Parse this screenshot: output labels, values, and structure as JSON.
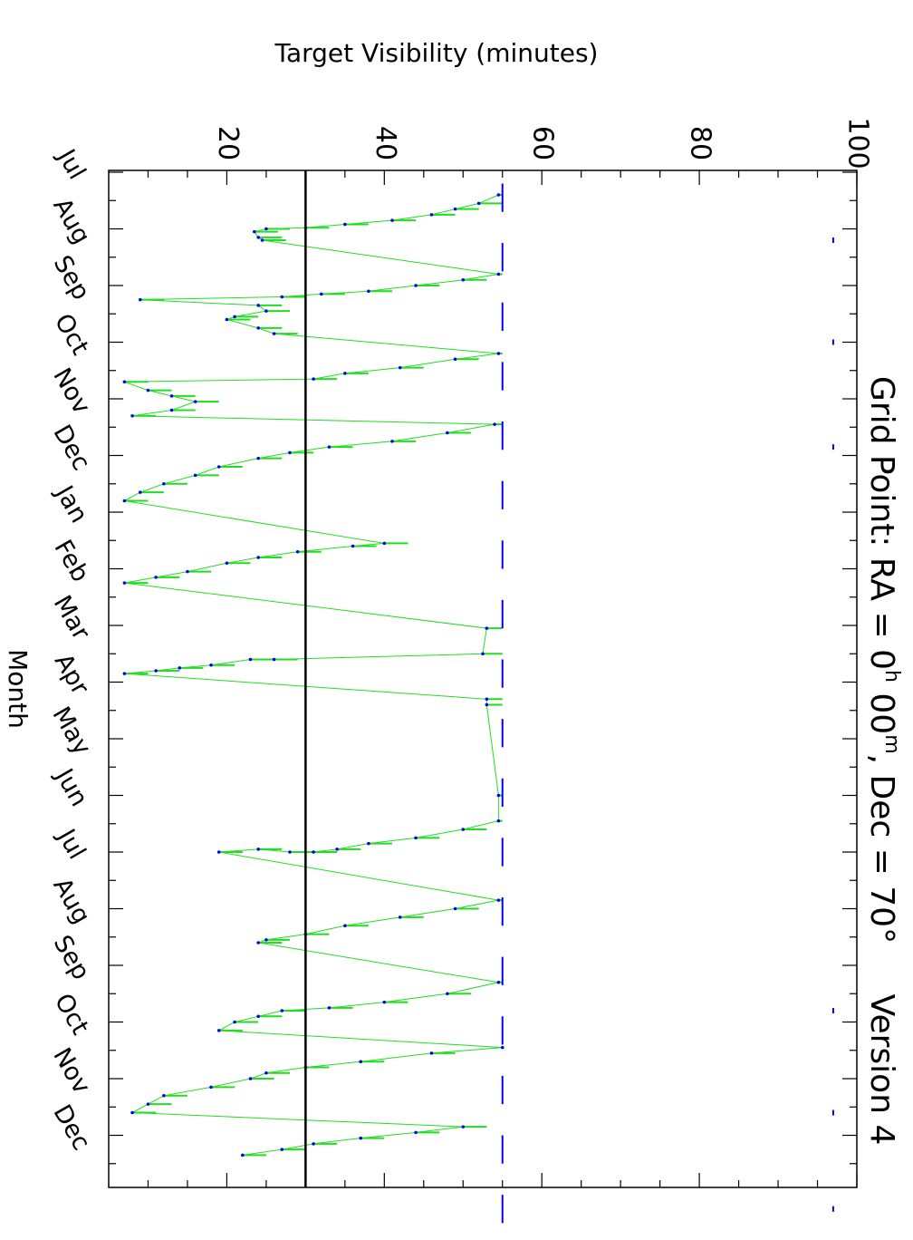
{
  "chart_data": {
    "type": "line",
    "title": "Grid Point: RA = 0h 00m, Dec = 70°",
    "title_parts": {
      "prefix": "Grid Point: RA = 0",
      "h_sup": "h",
      "mid": " 00",
      "m_sup": "m",
      "suffix": ", Dec = 70°"
    },
    "version_label": "Version 4",
    "xlabel": "Month",
    "ylabel": "Target Visibility (minutes)",
    "ylim": [
      5,
      100
    ],
    "y_ticks": [
      20,
      40,
      60,
      80,
      100
    ],
    "x_ticks": [
      "Jul",
      "Aug",
      "Sep",
      "Oct",
      "Nov",
      "Dec",
      "Jan",
      "Feb",
      "Mar",
      "Apr",
      "May",
      "Jun",
      "Jul",
      "Aug",
      "Sep",
      "Oct",
      "Nov",
      "Dec"
    ],
    "xlim_months": [
      0,
      18.5
    ],
    "threshold_line": 30,
    "colors": {
      "range_fill": "#22dd22",
      "points": "#0000ee",
      "threshold": "#000000"
    },
    "series": [
      {
        "name": "",
        "points": [
          [
            0.4,
            54.5
          ],
          [
            0.55,
            52
          ],
          [
            0.65,
            49
          ],
          [
            0.75,
            46
          ],
          [
            0.85,
            41
          ],
          [
            0.92,
            35
          ],
          [
            0.98,
            30
          ],
          [
            1.0,
            25
          ],
          [
            1.05,
            23.5
          ],
          [
            1.15,
            24
          ],
          [
            1.2,
            24.5
          ],
          [
            1.8,
            54.5
          ],
          [
            1.9,
            50
          ],
          [
            2.0,
            44
          ],
          [
            2.1,
            38
          ],
          [
            2.15,
            32
          ],
          [
            2.2,
            27
          ],
          [
            2.25,
            9
          ],
          [
            2.35,
            24
          ],
          [
            2.45,
            25
          ],
          [
            2.55,
            21
          ],
          [
            2.6,
            20
          ],
          [
            2.75,
            24
          ],
          [
            2.85,
            26
          ],
          [
            3.2,
            54.5
          ],
          [
            3.3,
            49
          ],
          [
            3.45,
            42
          ],
          [
            3.55,
            35
          ],
          [
            3.65,
            31
          ],
          [
            3.7,
            7
          ],
          [
            3.85,
            10
          ],
          [
            3.95,
            13
          ],
          [
            4.05,
            16
          ],
          [
            4.2,
            13
          ],
          [
            4.3,
            8
          ],
          [
            4.45,
            54
          ],
          [
            4.6,
            48
          ],
          [
            4.75,
            41
          ],
          [
            4.85,
            33
          ],
          [
            4.95,
            28
          ],
          [
            5.05,
            24
          ],
          [
            5.2,
            19
          ],
          [
            5.35,
            16
          ],
          [
            5.5,
            12
          ],
          [
            5.65,
            9
          ],
          [
            5.8,
            7
          ],
          [
            6.55,
            40
          ],
          [
            6.6,
            36
          ],
          [
            6.7,
            29
          ],
          [
            6.8,
            24
          ],
          [
            6.9,
            20
          ],
          [
            7.05,
            15
          ],
          [
            7.15,
            11
          ],
          [
            7.25,
            7
          ],
          [
            8.05,
            53
          ],
          [
            8.5,
            52.5
          ],
          [
            8.6,
            26
          ],
          [
            8.6,
            23
          ],
          [
            8.7,
            18
          ],
          [
            8.75,
            14
          ],
          [
            8.8,
            11
          ],
          [
            8.85,
            7
          ],
          [
            9.3,
            53
          ],
          [
            9.4,
            53
          ],
          [
            11.0,
            54.5
          ],
          [
            11.45,
            54.5
          ],
          [
            11.6,
            50
          ],
          [
            11.75,
            44
          ],
          [
            11.85,
            38
          ],
          [
            11.95,
            34
          ],
          [
            12.0,
            31
          ],
          [
            12.0,
            28
          ],
          [
            11.95,
            24
          ],
          [
            12.0,
            19
          ],
          [
            12.85,
            54.5
          ],
          [
            13.0,
            49
          ],
          [
            13.15,
            42
          ],
          [
            13.3,
            35
          ],
          [
            13.45,
            30
          ],
          [
            13.55,
            25
          ],
          [
            13.6,
            24
          ],
          [
            14.3,
            54.5
          ],
          [
            14.5,
            48
          ],
          [
            14.65,
            40
          ],
          [
            14.75,
            33
          ],
          [
            14.8,
            27
          ],
          [
            14.9,
            24
          ],
          [
            15.0,
            21
          ],
          [
            15.15,
            19
          ],
          [
            15.45,
            55
          ],
          [
            15.55,
            46
          ],
          [
            15.7,
            37
          ],
          [
            15.8,
            30
          ],
          [
            15.9,
            25
          ],
          [
            16.0,
            23
          ],
          [
            16.15,
            18
          ],
          [
            16.3,
            12
          ],
          [
            16.45,
            10
          ],
          [
            16.6,
            8
          ],
          [
            16.85,
            50
          ],
          [
            16.95,
            44
          ],
          [
            17.05,
            37
          ],
          [
            17.15,
            31
          ],
          [
            17.25,
            27
          ],
          [
            17.35,
            22
          ]
        ]
      },
      {
        "name": "",
        "points": [
          [
            1.2,
            97
          ],
          [
            3.0,
            97
          ],
          [
            4.85,
            97
          ],
          [
            14.8,
            97
          ],
          [
            16.6,
            97
          ],
          [
            18.3,
            97
          ]
        ]
      }
    ]
  }
}
